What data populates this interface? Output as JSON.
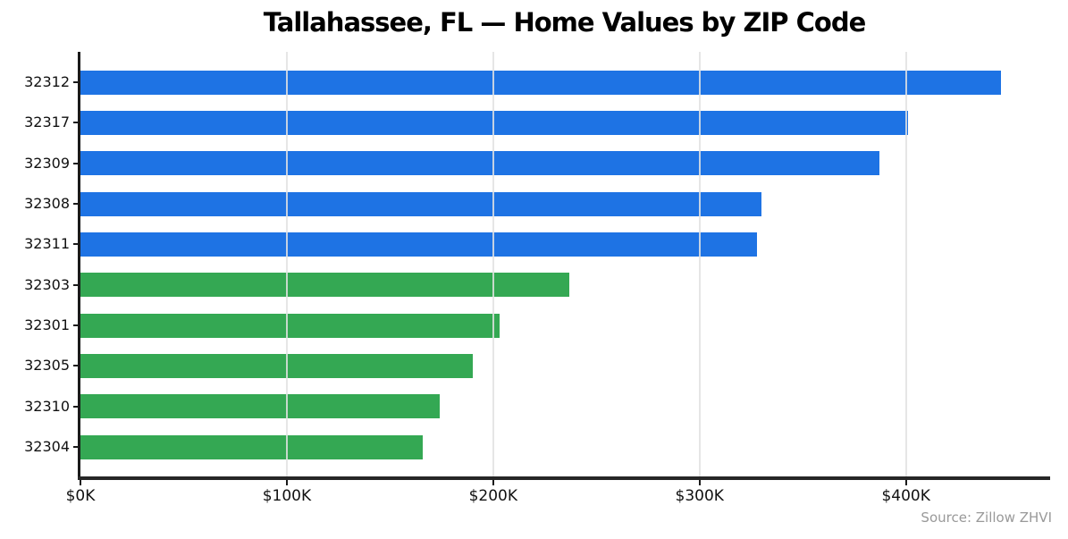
{
  "chart_data": {
    "type": "bar",
    "orientation": "horizontal",
    "title": "Tallahassee, FL — Home Values by ZIP Code",
    "xlabel": "",
    "ylabel": "",
    "units": "USD thousands",
    "categories": [
      "32312",
      "32317",
      "32309",
      "32308",
      "32311",
      "32303",
      "32301",
      "32305",
      "32310",
      "32304"
    ],
    "values_k": [
      446,
      401,
      387,
      330,
      328,
      237,
      203,
      190,
      174,
      166
    ],
    "bar_colors": [
      "#1e73e4",
      "#1e73e4",
      "#1e73e4",
      "#1e73e4",
      "#1e73e4",
      "#34a853",
      "#34a853",
      "#34a853",
      "#34a853",
      "#34a853"
    ],
    "xlim_k": [
      0,
      469
    ],
    "xticks": [
      {
        "value_k": 0,
        "label": "$0K"
      },
      {
        "value_k": 100,
        "label": "$100K"
      },
      {
        "value_k": 200,
        "label": "$200K"
      },
      {
        "value_k": 300,
        "label": "$300K"
      },
      {
        "value_k": 400,
        "label": "$400K"
      }
    ],
    "grid": "vertical",
    "legend": "none",
    "source_note": "Source: Zillow ZHVI"
  },
  "colors": {
    "bar_blue": "#1e73e4",
    "bar_green": "#34a853",
    "gridline": "#e2e2e2",
    "axis": "#1a1a1a",
    "source_text": "#999999"
  }
}
